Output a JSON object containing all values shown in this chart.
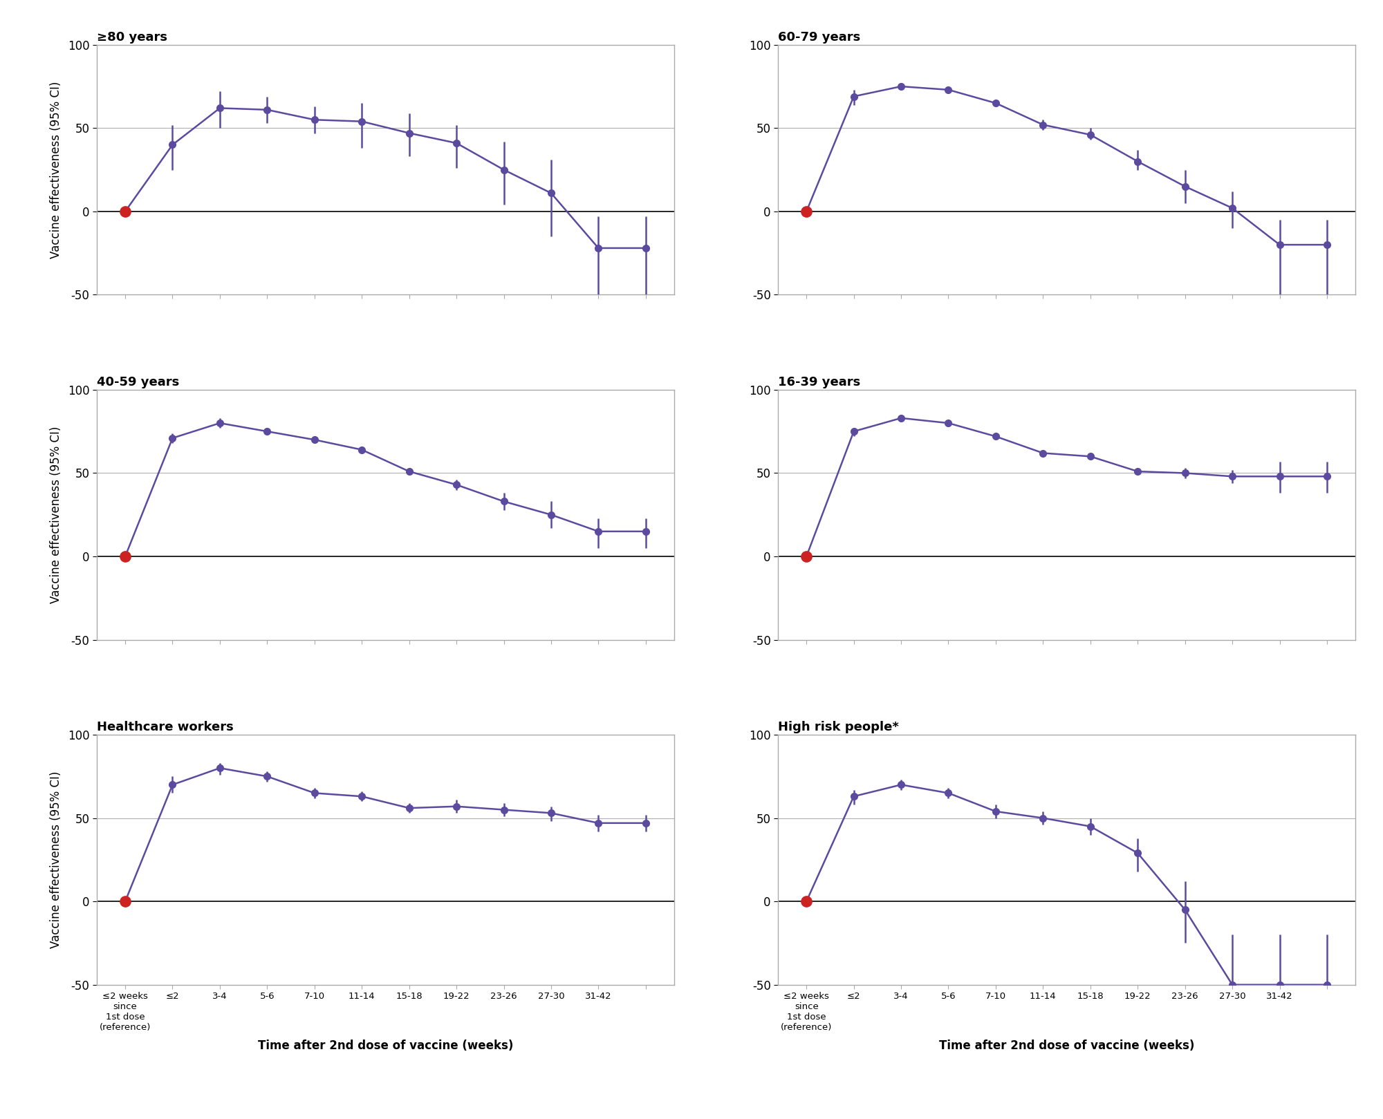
{
  "panels": [
    {
      "title": "≥80 years",
      "row": 0,
      "col": 0,
      "ref_x": 0,
      "ref_y": 0,
      "data_x": [
        1,
        2,
        3,
        4,
        5,
        6,
        7,
        8,
        9,
        10,
        11
      ],
      "data_y": [
        40,
        62,
        61,
        55,
        54,
        47,
        41,
        25,
        11,
        -22,
        -22
      ],
      "data_lo": [
        25,
        50,
        53,
        47,
        38,
        33,
        26,
        4,
        -15,
        -50,
        -50
      ],
      "data_hi": [
        52,
        72,
        69,
        63,
        65,
        59,
        52,
        42,
        31,
        -3,
        -3
      ],
      "ylim": [
        -50,
        100
      ]
    },
    {
      "title": "60-79 years",
      "row": 0,
      "col": 1,
      "ref_x": 0,
      "ref_y": 0,
      "data_x": [
        1,
        2,
        3,
        4,
        5,
        6,
        7,
        8,
        9,
        10,
        11
      ],
      "data_y": [
        69,
        75,
        73,
        65,
        52,
        46,
        30,
        15,
        2,
        -20,
        -20
      ],
      "data_lo": [
        64,
        73,
        71,
        63,
        49,
        43,
        25,
        5,
        -10,
        -50,
        -50
      ],
      "data_hi": [
        73,
        77,
        75,
        67,
        55,
        50,
        37,
        25,
        12,
        -5,
        -5
      ],
      "ylim": [
        -50,
        100
      ]
    },
    {
      "title": "40-59 years",
      "row": 1,
      "col": 0,
      "ref_x": 0,
      "ref_y": 0,
      "data_x": [
        1,
        2,
        3,
        4,
        5,
        6,
        7,
        8,
        9,
        10,
        11
      ],
      "data_y": [
        71,
        80,
        75,
        70,
        64,
        51,
        43,
        33,
        25,
        15,
        15
      ],
      "data_lo": [
        68,
        77,
        73,
        68,
        62,
        49,
        40,
        28,
        17,
        5,
        5
      ],
      "data_hi": [
        74,
        83,
        77,
        72,
        66,
        53,
        46,
        38,
        33,
        23,
        23
      ],
      "ylim": [
        -50,
        100
      ]
    },
    {
      "title": "16-39 years",
      "row": 1,
      "col": 1,
      "ref_x": 0,
      "ref_y": 0,
      "data_x": [
        1,
        2,
        3,
        4,
        5,
        6,
        7,
        8,
        9,
        10,
        11
      ],
      "data_y": [
        75,
        83,
        80,
        72,
        62,
        60,
        51,
        50,
        48,
        48,
        48
      ],
      "data_lo": [
        72,
        81,
        78,
        70,
        60,
        58,
        49,
        47,
        44,
        38,
        38
      ],
      "data_hi": [
        77,
        85,
        82,
        74,
        64,
        62,
        53,
        53,
        52,
        57,
        57
      ],
      "ylim": [
        -50,
        100
      ]
    },
    {
      "title": "Healthcare workers",
      "row": 2,
      "col": 0,
      "ref_x": 0,
      "ref_y": 0,
      "data_x": [
        1,
        2,
        3,
        4,
        5,
        6,
        7,
        8,
        9,
        10,
        11
      ],
      "data_y": [
        70,
        80,
        75,
        65,
        63,
        56,
        57,
        55,
        53,
        47,
        47
      ],
      "data_lo": [
        65,
        76,
        72,
        62,
        60,
        53,
        53,
        51,
        48,
        42,
        42
      ],
      "data_hi": [
        75,
        83,
        78,
        68,
        66,
        59,
        61,
        59,
        57,
        52,
        52
      ],
      "ylim": [
        -50,
        100
      ]
    },
    {
      "title": "High risk people*",
      "row": 2,
      "col": 1,
      "ref_x": 0,
      "ref_y": 0,
      "data_x": [
        1,
        2,
        3,
        4,
        5,
        6,
        7,
        8,
        9,
        10,
        11
      ],
      "data_y": [
        63,
        70,
        65,
        54,
        50,
        45,
        29,
        -5,
        -50,
        -50,
        -50
      ],
      "data_lo": [
        58,
        67,
        62,
        50,
        46,
        40,
        18,
        -25,
        -80,
        -80,
        -80
      ],
      "data_hi": [
        67,
        73,
        68,
        58,
        54,
        50,
        38,
        12,
        -20,
        -20,
        -20
      ],
      "ylim": [
        -50,
        100
      ]
    }
  ],
  "x_tick_positions": [
    0,
    1,
    2,
    3,
    4,
    5,
    6,
    7,
    8,
    9,
    10,
    11
  ],
  "x_tick_labels": [
    "≤2 weeks\nsince\n1st dose\n(reference)",
    "≤2",
    "3-4",
    "5-6",
    "7-10",
    "11-14",
    "15-18",
    "19-22",
    "23-26",
    "27-30",
    "31-42",
    ""
  ],
  "xlabel": "Time after 2nd dose of vaccine (weeks)",
  "ylabel": "Vaccine effectiveness (95% CI)",
  "line_color": "#5B4A9E",
  "ref_color": "#CC2222",
  "bg_color": "#ffffff",
  "grid_color": "#b0b0b0",
  "border_color": "#aaaaaa",
  "yticks": [
    -50,
    0,
    50,
    100
  ],
  "ytick_labels": [
    "-50",
    "0",
    "50",
    "100"
  ]
}
